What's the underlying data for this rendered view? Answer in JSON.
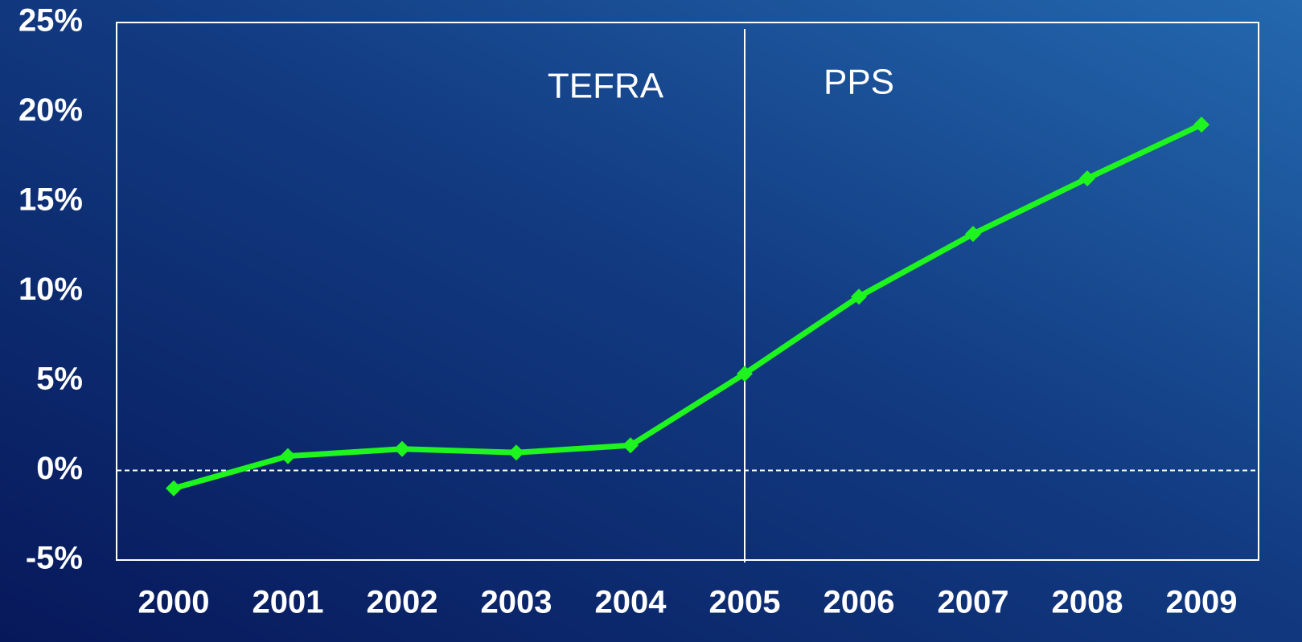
{
  "chart_data": {
    "type": "line",
    "categories": [
      "2000",
      "2001",
      "2002",
      "2003",
      "2004",
      "2005",
      "2006",
      "2007",
      "2008",
      "2009"
    ],
    "series": [
      {
        "color": "#1ef51e",
        "values": [
          -1.0,
          0.8,
          1.2,
          1.0,
          1.4,
          5.4,
          9.7,
          13.2,
          16.3,
          19.3
        ]
      }
    ],
    "ylim": [
      -5,
      25
    ],
    "yticks": [
      {
        "value": -5,
        "label": "-5%"
      },
      {
        "value": 0,
        "label": "0%"
      },
      {
        "value": 5,
        "label": "5%"
      },
      {
        "value": 10,
        "label": "10%"
      },
      {
        "value": 15,
        "label": "15%"
      },
      {
        "value": 20,
        "label": "20%"
      },
      {
        "value": 25,
        "label": "25%"
      }
    ],
    "annotations": [
      "TEFRA",
      "PPS"
    ]
  }
}
